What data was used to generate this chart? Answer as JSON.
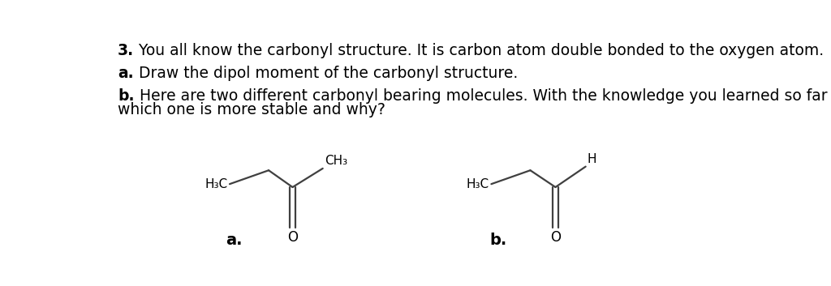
{
  "title_line1_bold": "3.",
  "title_line1_rest": " You all know the carbonyl structure. It is carbon atom double bonded to the oxygen atom.",
  "line_a_bold": "a.",
  "line_a_rest": " Draw the dipol moment of the carbonyl structure.",
  "line_b_bold": "b.",
  "line_b_rest": " Here are two different carbonyl bearing molecules. With the knowledge you learned so far explain",
  "line_b2": "which one is more stable and why?",
  "bg_color": "#ffffff",
  "text_color": "#000000",
  "mol_color": "#404040",
  "label_a": "a.",
  "label_b": "b.",
  "mol1_label_h3c": "H₃C",
  "mol1_label_ch3": "CH₃",
  "mol1_label_o": "O",
  "mol2_label_h3c": "H₃C",
  "mol2_label_h": "H",
  "mol2_label_o": "O",
  "font_size_text": 13.5,
  "font_size_mol": 11,
  "font_size_label": 13
}
